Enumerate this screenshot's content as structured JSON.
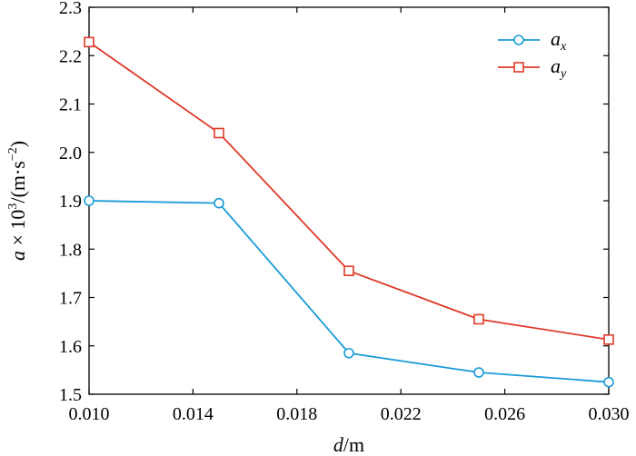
{
  "chart_data": {
    "type": "line",
    "x": [
      0.01,
      0.015,
      0.02,
      0.025,
      0.03
    ],
    "series": [
      {
        "name": "a_x",
        "legend_main": "a",
        "legend_sub": "x",
        "color": "#1a9bd7",
        "marker": "circle",
        "values": [
          1.9,
          1.895,
          1.585,
          1.545,
          1.525
        ]
      },
      {
        "name": "a_y",
        "legend_main": "a",
        "legend_sub": "y",
        "color": "#e03a2a",
        "marker": "square",
        "values": [
          2.228,
          2.04,
          1.755,
          1.655,
          1.613
        ]
      }
    ],
    "xlim": [
      0.01,
      0.03
    ],
    "ylim": [
      1.5,
      2.3
    ],
    "xticks": [
      "0.010",
      "0.014",
      "0.018",
      "0.022",
      "0.026",
      "0.030"
    ],
    "xtick_values": [
      0.01,
      0.014,
      0.018,
      0.022,
      0.026,
      0.03
    ],
    "yticks": [
      "1.5",
      "1.6",
      "1.7",
      "1.8",
      "1.9",
      "2.0",
      "2.1",
      "2.2",
      "2.3"
    ],
    "ytick_values": [
      1.5,
      1.6,
      1.7,
      1.8,
      1.9,
      2.0,
      2.1,
      2.2,
      2.3
    ],
    "xlabel": {
      "var": "d",
      "unit": "/m"
    },
    "ylabel": {
      "var": "a",
      "times": " × 10",
      "exp": "3",
      "unit": "/(m·s",
      "unit_exp": "−2",
      "close": ")"
    },
    "legend_position": "top-right",
    "grid": false
  }
}
